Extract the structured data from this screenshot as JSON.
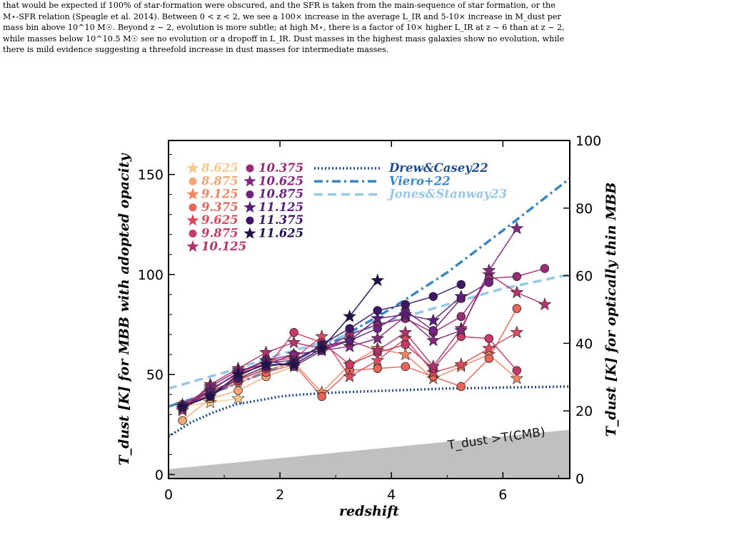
{
  "caption": {
    "lines": [
      "that would be expected if 100% of star-formation were obscured, and the SFR is taken from the main-sequence of star formation, or the",
      "M⋆-SFR relation (Speagle et al. 2014). Between 0 < z < 2, we see a 100× increase in the average L_IR and 5-10× increase in M_dust per",
      "mass bin above 10^10 M☉. Beyond z ~ 2, evolution is more subtle; at high M⋆, there is a factor of 10× higher L_IR at z ~ 6 than at z ~ 2,",
      "while masses below 10^10.5 M☉ see no evolution or a dropoff in L_IR. Dust masses in the highest mass galaxies show no evolution, while",
      "there is mild evidence suggesting a threefold increase in dust masses for intermediate masses."
    ]
  },
  "colors": {
    "m8625": "#f7c98d",
    "m8875": "#f5a876",
    "m9125": "#f08660",
    "m9375": "#e8655a",
    "m9625": "#dc4a5f",
    "m9875": "#c93a68",
    "m10125": "#b3336f",
    "m10375": "#9a2d78",
    "m10625": "#84297e",
    "m10875": "#70247f",
    "m11125": "#5a1f7a",
    "m11375": "#3e1668",
    "m11625": "#24104f",
    "drew": "#1f4e91",
    "viero": "#3a86c2",
    "jones": "#96c7e6",
    "cmb_fill": "#c0c0c0"
  },
  "chart_data": {
    "type": "line",
    "xlabel": "redshift",
    "ylabel": "T_dust [K] for MBB with adopted opacity",
    "ylabel_right": "T_dust [K] for optically thin MBB",
    "xlim": [
      0,
      7.2
    ],
    "ylim": [
      -2,
      167
    ],
    "ylim_right": [
      0,
      100
    ],
    "xticks": [
      "0",
      "2",
      "4",
      "6"
    ],
    "yticks": [
      "0",
      "50",
      "100",
      "150"
    ],
    "yticks_right": [
      "0",
      "20",
      "40",
      "60",
      "80",
      "100"
    ],
    "grid": false,
    "legend_position": "top-left",
    "cmb_label": "T_dust >T(CMB)",
    "x": [
      0.25,
      0.75,
      1.25,
      1.75,
      2.25,
      2.75,
      3.25,
      3.75,
      4.25,
      4.75,
      5.25,
      5.75,
      6.25,
      6.75
    ],
    "series": [
      {
        "name": "8.625",
        "marker": "star",
        "color_key": "m8625",
        "values": [
          34,
          36,
          38,
          null,
          null,
          null,
          null,
          null,
          null,
          null,
          null,
          null,
          null,
          null
        ]
      },
      {
        "name": "8.875",
        "marker": "circle",
        "color_key": "m8875",
        "values": [
          27,
          38,
          42,
          49,
          54,
          null,
          null,
          null,
          null,
          null,
          null,
          null,
          null,
          null
        ]
      },
      {
        "name": "9.125",
        "marker": "star",
        "color_key": "m9125",
        "values": [
          34,
          41,
          48,
          52,
          56,
          41,
          55,
          63,
          60,
          48,
          54,
          60,
          48,
          null
        ]
      },
      {
        "name": "9.375",
        "marker": "circle",
        "color_key": "m9375",
        "values": [
          33,
          40,
          46,
          51,
          55,
          39,
          52,
          53,
          54,
          49,
          44,
          58,
          83,
          null
        ]
      },
      {
        "name": "9.625",
        "marker": "star",
        "color_key": "m9625",
        "values": [
          35,
          43,
          50,
          57,
          58,
          69,
          49,
          57,
          68,
          51,
          55,
          63,
          71,
          null
        ]
      },
      {
        "name": "9.875",
        "marker": "circle",
        "color_key": "m9875",
        "values": [
          34,
          42,
          47,
          53,
          71,
          66,
          55,
          61,
          65,
          53,
          69,
          68,
          52,
          null
        ]
      },
      {
        "name": "10.125",
        "marker": "star",
        "color_key": "m10125",
        "values": [
          32,
          45,
          53,
          61,
          66,
          63,
          67,
          62,
          71,
          54,
          73,
          100,
          91,
          85
        ]
      },
      {
        "name": "10.375",
        "marker": "circle",
        "color_key": "m10375",
        "values": [
          35,
          42,
          51,
          57,
          60,
          62,
          70,
          75,
          78,
          71,
          79,
          98,
          99,
          103
        ]
      },
      {
        "name": "10.625",
        "marker": "star",
        "color_key": "m10625",
        "values": [
          33,
          44,
          52,
          55,
          60,
          62,
          64,
          68,
          79,
          67,
          72,
          102,
          123,
          null
        ]
      },
      {
        "name": "10.875",
        "marker": "circle",
        "color_key": "m10875",
        "values": [
          34,
          40,
          49,
          56,
          57,
          64,
          67,
          73,
          82,
          72,
          88,
          96,
          null,
          null
        ]
      },
      {
        "name": "11.125",
        "marker": "star",
        "color_key": "m11125",
        "values": [
          33,
          42,
          51,
          57,
          54,
          62,
          67,
          78,
          80,
          77,
          89,
          null,
          null,
          null
        ]
      },
      {
        "name": "11.375",
        "marker": "circle",
        "color_key": "m11375",
        "values": [
          34,
          39,
          48,
          54,
          56,
          65,
          73,
          82,
          85,
          89,
          95,
          null,
          null,
          null
        ]
      },
      {
        "name": "11.625",
        "marker": "star",
        "color_key": "m11625",
        "values": [
          34,
          39,
          50,
          55,
          55,
          63,
          79,
          97,
          null,
          null,
          null,
          null,
          null,
          null
        ]
      }
    ],
    "relations": [
      {
        "name": "Drew&Casey22",
        "style": "dotted",
        "color_key": "drew",
        "x": [
          0,
          0.4,
          0.8,
          1.2,
          1.6,
          2.0,
          2.4,
          3.0,
          4.0,
          5.0,
          6.0,
          7.2
        ],
        "y": [
          19,
          26,
          31,
          35,
          37,
          39,
          40,
          41,
          42,
          43,
          43.5,
          44
        ]
      },
      {
        "name": "Viero+22",
        "style": "dashdot",
        "color_key": "viero",
        "x": [
          0,
          1,
          2,
          3,
          4,
          5,
          6,
          7.2
        ],
        "y": [
          34,
          43,
          54,
          67,
          83,
          101,
          122,
          148
        ]
      },
      {
        "name": "Jones&Stanway23",
        "style": "dashed",
        "color_key": "jones",
        "x": [
          0,
          1,
          2,
          3,
          4,
          5,
          6,
          7.2
        ],
        "y": [
          43,
          51,
          60,
          68,
          77,
          85,
          93,
          100
        ]
      }
    ],
    "cmb_band": {
      "x": [
        0,
        7.2
      ],
      "y": [
        2.73,
        22.4
      ]
    }
  }
}
